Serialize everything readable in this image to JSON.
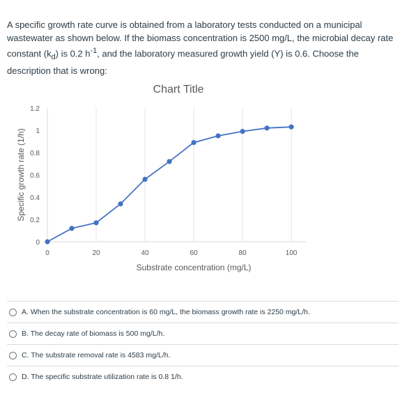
{
  "question": {
    "p1": "A specific growth rate curve is obtained from a laboratory tests conducted on a municipal wastewater as shown below. If the biomass concentration is 2500 mg/L, the microbial decay rate constant (k",
    "kd_sub": "d",
    "p2": ") is 0.2 h",
    "exp": "-1",
    "p3": ", and the laboratory measured growth yield (Y) is 0.6. Choose the description that is wrong:"
  },
  "chart_data": {
    "type": "line",
    "title": "Chart Title",
    "xlabel": "Substrate concentration (mg/L)",
    "ylabel": "Specific growth rate (1/h)",
    "xlim": [
      0,
      105
    ],
    "ylim": [
      0,
      1.2
    ],
    "xticks": [
      0,
      20,
      40,
      60,
      80,
      100
    ],
    "yticks": [
      0,
      0.2,
      0.4,
      0.6,
      0.8,
      1,
      1.2
    ],
    "x": [
      0,
      10,
      20,
      30,
      40,
      50,
      60,
      70,
      80,
      90,
      100
    ],
    "series": [
      {
        "values": [
          0,
          0.12,
          0.17,
          0.34,
          0.56,
          0.72,
          0.89,
          0.95,
          0.99,
          1.02,
          1.03
        ]
      }
    ],
    "color": "#4472c4",
    "grid": "vertical"
  },
  "options": [
    {
      "label": "A. When the substrate concentration is 60 mg/L, the biomass growth rate is 2250 mg/L/h."
    },
    {
      "label": "B. The decay rate of biomass is 500 mg/L/h."
    },
    {
      "label": "C. The substrate removal rate is 4583 mg/L/h."
    },
    {
      "label": "D. The specific substrate utilization rate is 0.8 1/h."
    }
  ]
}
